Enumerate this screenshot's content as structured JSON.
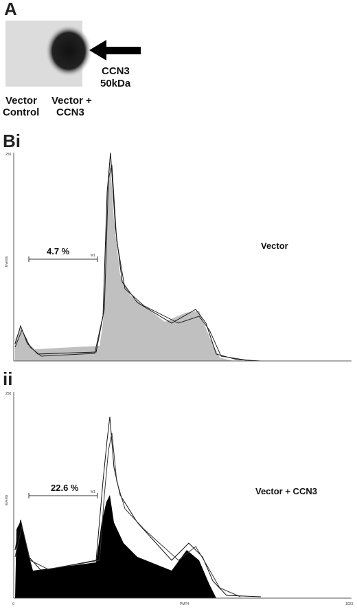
{
  "panels": {
    "a": {
      "label": "A",
      "band_label": [
        "CCN3",
        "50kDa"
      ],
      "lanes": [
        [
          "Vector",
          "Control"
        ],
        [
          "Vector +",
          "CCN3"
        ]
      ]
    },
    "bi": {
      "label": "Bi",
      "y_tick_top": "250",
      "y_axis_label": "Events",
      "gate_percent": "4.7 %",
      "gate_name": "M1",
      "condition": "Vector"
    },
    "ii": {
      "label": "ii",
      "y_tick_top": "250",
      "y_axis_label": "Events",
      "gate_percent": "22.6 %",
      "gate_name": "M1",
      "condition": "Vector + CCN3",
      "x_tick_left": "0",
      "x_axis_label": "PMT4",
      "x_tick_right": "1023"
    }
  }
}
